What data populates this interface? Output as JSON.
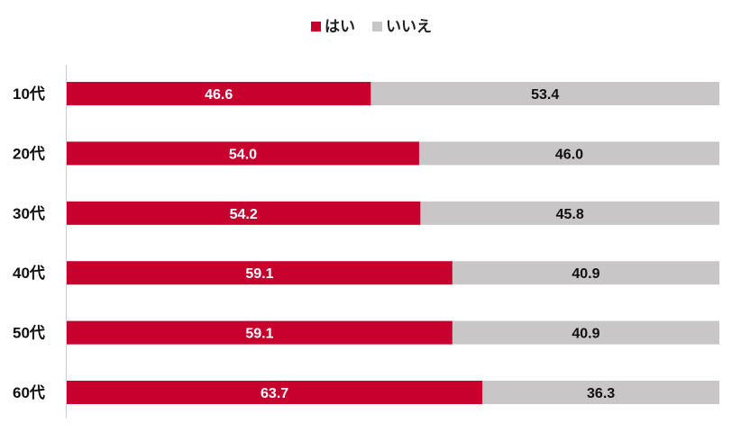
{
  "chart_data": {
    "type": "bar",
    "orientation": "horizontal",
    "stacked": true,
    "categories": [
      "10代",
      "20代",
      "30代",
      "40代",
      "50代",
      "60代"
    ],
    "series": [
      {
        "name": "はい",
        "color": "#c8002e",
        "values": [
          46.6,
          54.0,
          54.2,
          59.1,
          59.1,
          63.7
        ]
      },
      {
        "name": "いいえ",
        "color": "#c8c6c6",
        "values": [
          53.4,
          46.0,
          45.8,
          40.9,
          40.9,
          36.3
        ]
      }
    ],
    "xlim": [
      0,
      100
    ],
    "legend": "top-center",
    "grid": false,
    "title": "",
    "xlabel": "",
    "ylabel": ""
  }
}
